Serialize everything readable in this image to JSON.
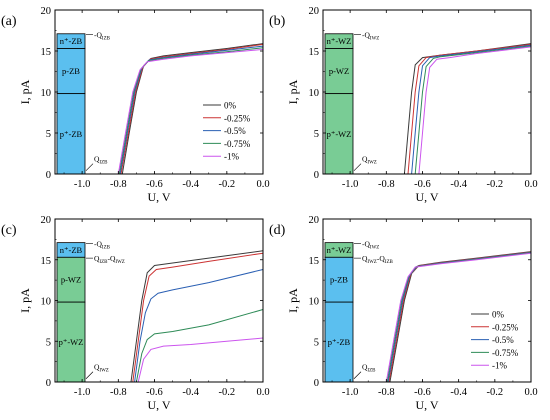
{
  "colors": {
    "zb_fill": "#5bbfef",
    "wz_fill": "#79cc95",
    "series": [
      "#3a3a3a",
      "#cc3333",
      "#2a5fb3",
      "#2e8b57",
      "#cc55ee"
    ]
  },
  "chart_data": [
    {
      "panel_label": "(a)",
      "type": "line",
      "xlabel": "U, V",
      "ylabel": "I, pA",
      "xlim": [
        -1.15,
        0.0
      ],
      "ylim": [
        0,
        20
      ],
      "xticks": [
        "-1.0",
        "-0.8",
        "-0.6",
        "-0.4",
        "-0.2",
        "0.0"
      ],
      "yticks": [
        "0",
        "5",
        "10",
        "15",
        "20"
      ],
      "legend_position": "lower-right",
      "layers": [
        {
          "label": "n⁺-ZB",
          "kind": "ZB"
        },
        {
          "label": "p-ZB",
          "kind": "ZB"
        },
        {
          "label": "p⁺-ZB",
          "kind": "ZB"
        }
      ],
      "annotations": [
        {
          "text": "Q",
          "sub": "IZB",
          "pre": "-"
        },
        {
          "text": "Q",
          "sub": "IZB",
          "pre": ""
        }
      ],
      "series": [
        {
          "name": "0%",
          "color_idx": 0,
          "points": [
            [
              -0.778,
              0
            ],
            [
              -0.74,
              5
            ],
            [
              -0.7,
              10
            ],
            [
              -0.66,
              13.2
            ],
            [
              -0.62,
              14.1
            ],
            [
              -0.55,
              14.4
            ],
            [
              -0.4,
              14.8
            ],
            [
              -0.2,
              15.3
            ],
            [
              0.0,
              15.9
            ]
          ]
        },
        {
          "name": "-0.25%",
          "color_idx": 1,
          "points": [
            [
              -0.785,
              0
            ],
            [
              -0.745,
              5
            ],
            [
              -0.705,
              10
            ],
            [
              -0.665,
              13.0
            ],
            [
              -0.625,
              14.0
            ],
            [
              -0.55,
              14.3
            ],
            [
              -0.4,
              14.7
            ],
            [
              -0.2,
              15.2
            ],
            [
              0.0,
              15.8
            ]
          ]
        },
        {
          "name": "-0.5%",
          "color_idx": 2,
          "points": [
            [
              -0.79,
              0
            ],
            [
              -0.75,
              5
            ],
            [
              -0.71,
              10
            ],
            [
              -0.67,
              12.9
            ],
            [
              -0.63,
              13.9
            ],
            [
              -0.55,
              14.2
            ],
            [
              -0.4,
              14.6
            ],
            [
              -0.2,
              15.1
            ],
            [
              0.0,
              15.6
            ]
          ]
        },
        {
          "name": "-0.75%",
          "color_idx": 3,
          "points": [
            [
              -0.795,
              0
            ],
            [
              -0.755,
              5
            ],
            [
              -0.715,
              10
            ],
            [
              -0.675,
              12.8
            ],
            [
              -0.635,
              13.8
            ],
            [
              -0.55,
              14.1
            ],
            [
              -0.4,
              14.5
            ],
            [
              -0.2,
              14.9
            ],
            [
              0.0,
              15.4
            ]
          ]
        },
        {
          "name": "-1%",
          "color_idx": 4,
          "points": [
            [
              -0.8,
              0
            ],
            [
              -0.76,
              5
            ],
            [
              -0.72,
              10
            ],
            [
              -0.68,
              12.7
            ],
            [
              -0.64,
              13.7
            ],
            [
              -0.55,
              14.0
            ],
            [
              -0.4,
              14.4
            ],
            [
              -0.2,
              14.8
            ],
            [
              0.0,
              15.2
            ]
          ]
        }
      ]
    },
    {
      "panel_label": "(b)",
      "type": "line",
      "xlabel": "U, V",
      "ylabel": "I, pA",
      "xlim": [
        -1.15,
        0.0
      ],
      "ylim": [
        0,
        20
      ],
      "xticks": [
        "-1.0",
        "-0.8",
        "-0.6",
        "-0.4",
        "-0.2",
        "0.0"
      ],
      "yticks": [
        "0",
        "5",
        "10",
        "15",
        "20"
      ],
      "legend_position": "",
      "layers": [
        {
          "label": "n⁺-WZ",
          "kind": "WZ"
        },
        {
          "label": "p-WZ",
          "kind": "WZ"
        },
        {
          "label": "p⁺-WZ",
          "kind": "WZ"
        }
      ],
      "annotations": [
        {
          "text": "Q",
          "sub": "IWZ",
          "pre": "-"
        },
        {
          "text": "Q",
          "sub": "IWZ",
          "pre": ""
        }
      ],
      "series": [
        {
          "name": "0%",
          "color_idx": 0,
          "points": [
            [
              -0.7,
              0
            ],
            [
              -0.68,
              5
            ],
            [
              -0.66,
              10
            ],
            [
              -0.64,
              13.3
            ],
            [
              -0.6,
              14.2
            ],
            [
              -0.5,
              14.5
            ],
            [
              -0.3,
              15.0
            ],
            [
              0.0,
              15.9
            ]
          ]
        },
        {
          "name": "-0.25%",
          "color_idx": 1,
          "points": [
            [
              -0.68,
              0
            ],
            [
              -0.66,
              5
            ],
            [
              -0.64,
              10
            ],
            [
              -0.62,
              13.2
            ],
            [
              -0.58,
              14.2
            ],
            [
              -0.5,
              14.5
            ],
            [
              -0.3,
              15.0
            ],
            [
              0.0,
              15.8
            ]
          ]
        },
        {
          "name": "-0.5%",
          "color_idx": 2,
          "points": [
            [
              -0.66,
              0
            ],
            [
              -0.64,
              5
            ],
            [
              -0.62,
              10
            ],
            [
              -0.6,
              13.2
            ],
            [
              -0.56,
              14.2
            ],
            [
              -0.5,
              14.4
            ],
            [
              -0.3,
              14.9
            ],
            [
              0.0,
              15.7
            ]
          ]
        },
        {
          "name": "-0.75%",
          "color_idx": 3,
          "points": [
            [
              -0.64,
              0
            ],
            [
              -0.62,
              5
            ],
            [
              -0.6,
              10
            ],
            [
              -0.58,
              13.1
            ],
            [
              -0.54,
              14.1
            ],
            [
              -0.5,
              14.3
            ],
            [
              -0.3,
              14.8
            ],
            [
              0.0,
              15.6
            ]
          ]
        },
        {
          "name": "-1%",
          "color_idx": 4,
          "points": [
            [
              -0.62,
              0
            ],
            [
              -0.6,
              5
            ],
            [
              -0.58,
              10
            ],
            [
              -0.56,
              13.0
            ],
            [
              -0.52,
              14.0
            ],
            [
              -0.45,
              14.2
            ],
            [
              -0.3,
              14.7
            ],
            [
              0.0,
              15.5
            ]
          ]
        }
      ]
    },
    {
      "panel_label": "(c)",
      "type": "line",
      "xlabel": "U, V",
      "ylabel": "I, pA",
      "xlim": [
        -1.15,
        0.0
      ],
      "ylim": [
        0,
        20
      ],
      "xticks": [
        "-1.0",
        "-0.8",
        "-0.6",
        "-0.4",
        "-0.2",
        "0.0"
      ],
      "yticks": [
        "0",
        "5",
        "10",
        "15",
        "20"
      ],
      "legend_position": "",
      "layers": [
        {
          "label": "n⁺-ZB",
          "kind": "ZB"
        },
        {
          "label": "p-WZ",
          "kind": "WZ"
        },
        {
          "label": "p⁺-WZ",
          "kind": "WZ"
        }
      ],
      "annotations": [
        {
          "text": "Q",
          "sub": "IZB",
          "pre": "-"
        },
        {
          "text": "Q",
          "sub": "IZB",
          "pre": "",
          "extra": "-Q",
          "extra_sub": "IWZ"
        },
        {
          "text": "Q",
          "sub": "IWZ",
          "pre": ""
        }
      ],
      "series": [
        {
          "name": "0%",
          "color_idx": 0,
          "points": [
            [
              -0.73,
              0
            ],
            [
              -0.7,
              5
            ],
            [
              -0.67,
              10
            ],
            [
              -0.64,
              13.4
            ],
            [
              -0.6,
              14.3
            ],
            [
              -0.5,
              14.6
            ],
            [
              -0.3,
              15.2
            ],
            [
              0.0,
              16.1
            ]
          ]
        },
        {
          "name": "-0.25%",
          "color_idx": 1,
          "points": [
            [
              -0.72,
              0
            ],
            [
              -0.69,
              5
            ],
            [
              -0.66,
              10
            ],
            [
              -0.63,
              13.0
            ],
            [
              -0.59,
              13.8
            ],
            [
              -0.5,
              14.1
            ],
            [
              -0.3,
              14.8
            ],
            [
              0.0,
              15.8
            ]
          ]
        },
        {
          "name": "-0.5%",
          "color_idx": 2,
          "points": [
            [
              -0.71,
              0
            ],
            [
              -0.68,
              5
            ],
            [
              -0.65,
              8.5
            ],
            [
              -0.62,
              10.2
            ],
            [
              -0.58,
              10.9
            ],
            [
              -0.5,
              11.3
            ],
            [
              -0.3,
              12.2
            ],
            [
              0.0,
              13.8
            ]
          ]
        },
        {
          "name": "-0.75%",
          "color_idx": 3,
          "points": [
            [
              -0.7,
              0
            ],
            [
              -0.67,
              3.5
            ],
            [
              -0.64,
              5.2
            ],
            [
              -0.6,
              5.9
            ],
            [
              -0.5,
              6.2
            ],
            [
              -0.3,
              7.0
            ],
            [
              0.0,
              8.9
            ]
          ]
        },
        {
          "name": "-1%",
          "color_idx": 4,
          "points": [
            [
              -0.69,
              0
            ],
            [
              -0.66,
              2.8
            ],
            [
              -0.62,
              4.0
            ],
            [
              -0.55,
              4.4
            ],
            [
              -0.4,
              4.6
            ],
            [
              -0.2,
              5.0
            ],
            [
              0.0,
              5.4
            ]
          ]
        }
      ]
    },
    {
      "panel_label": "(d)",
      "type": "line",
      "xlabel": "U, V",
      "ylabel": "I, pA",
      "xlim": [
        -1.15,
        0.0
      ],
      "ylim": [
        0,
        20
      ],
      "xticks": [
        "-1.0",
        "-0.8",
        "-0.6",
        "-0.4",
        "-0.2",
        "0.0"
      ],
      "yticks": [
        "0",
        "5",
        "10",
        "15",
        "20"
      ],
      "legend_position": "lower-right",
      "layers": [
        {
          "label": "n⁺-WZ",
          "kind": "WZ"
        },
        {
          "label": "p-ZB",
          "kind": "ZB"
        },
        {
          "label": "p⁺-ZB",
          "kind": "ZB"
        }
      ],
      "annotations": [
        {
          "text": "Q",
          "sub": "IWZ",
          "pre": "-"
        },
        {
          "text": "Q",
          "sub": "IWZ",
          "pre": "",
          "extra": "-Q",
          "extra_sub": "IZB"
        },
        {
          "text": "Q",
          "sub": "IZB",
          "pre": ""
        }
      ],
      "series": [
        {
          "name": "0%",
          "color_idx": 0,
          "points": [
            [
              -0.78,
              0
            ],
            [
              -0.74,
              5
            ],
            [
              -0.7,
              10
            ],
            [
              -0.66,
              13.3
            ],
            [
              -0.62,
              14.3
            ],
            [
              -0.5,
              14.7
            ],
            [
              -0.3,
              15.2
            ],
            [
              0.0,
              16.0
            ]
          ]
        },
        {
          "name": "-0.25%",
          "color_idx": 1,
          "points": [
            [
              -0.785,
              0
            ],
            [
              -0.745,
              5
            ],
            [
              -0.705,
              10
            ],
            [
              -0.665,
              13.2
            ],
            [
              -0.625,
              14.25
            ],
            [
              -0.5,
              14.65
            ],
            [
              -0.3,
              15.15
            ],
            [
              0.0,
              15.95
            ]
          ]
        },
        {
          "name": "-0.5%",
          "color_idx": 2,
          "points": [
            [
              -0.79,
              0
            ],
            [
              -0.75,
              5
            ],
            [
              -0.71,
              10
            ],
            [
              -0.67,
              13.1
            ],
            [
              -0.63,
              14.2
            ],
            [
              -0.5,
              14.6
            ],
            [
              -0.3,
              15.1
            ],
            [
              0.0,
              15.9
            ]
          ]
        },
        {
          "name": "-0.75%",
          "color_idx": 3,
          "points": [
            [
              -0.795,
              0
            ],
            [
              -0.755,
              5
            ],
            [
              -0.715,
              10
            ],
            [
              -0.675,
              13.0
            ],
            [
              -0.635,
              14.15
            ],
            [
              -0.5,
              14.55
            ],
            [
              -0.3,
              15.05
            ],
            [
              0.0,
              15.85
            ]
          ]
        },
        {
          "name": "-1%",
          "color_idx": 4,
          "points": [
            [
              -0.8,
              0
            ],
            [
              -0.76,
              5
            ],
            [
              -0.72,
              10
            ],
            [
              -0.68,
              12.9
            ],
            [
              -0.64,
              14.1
            ],
            [
              -0.5,
              14.5
            ],
            [
              -0.3,
              15.0
            ],
            [
              0.0,
              15.8
            ]
          ]
        }
      ]
    }
  ]
}
